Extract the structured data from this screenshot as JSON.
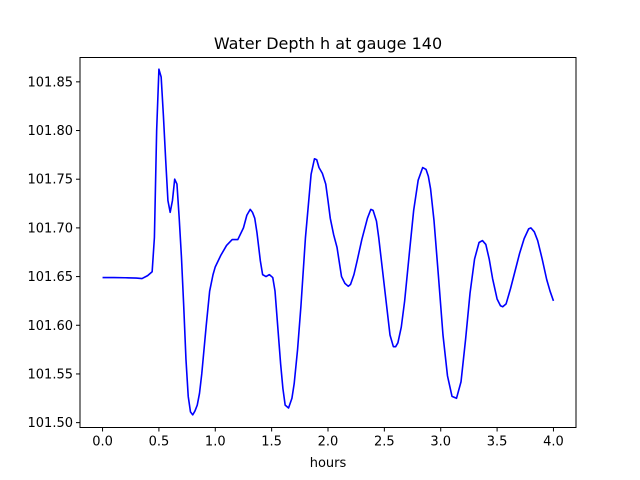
{
  "chart_data": {
    "type": "line",
    "title": "Water Depth h at gauge 140",
    "xlabel": "hours",
    "ylabel": "",
    "xlim": [
      -0.2,
      4.2
    ],
    "ylim": [
      101.495,
      101.875
    ],
    "xticks": [
      0.0,
      0.5,
      1.0,
      1.5,
      2.0,
      2.5,
      3.0,
      3.5,
      4.0
    ],
    "xtick_labels": [
      "0.0",
      "0.5",
      "1.0",
      "1.5",
      "2.0",
      "2.5",
      "3.0",
      "3.5",
      "4.0"
    ],
    "yticks": [
      101.5,
      101.55,
      101.6,
      101.65,
      101.7,
      101.75,
      101.8,
      101.85
    ],
    "ytick_labels": [
      "101.50",
      "101.55",
      "101.60",
      "101.65",
      "101.70",
      "101.75",
      "101.80",
      "101.85"
    ],
    "grid": false,
    "series": [
      {
        "color": "#0000ff",
        "x": [
          0.0,
          0.1,
          0.2,
          0.3,
          0.35,
          0.4,
          0.44,
          0.46,
          0.48,
          0.5,
          0.52,
          0.54,
          0.56,
          0.58,
          0.6,
          0.62,
          0.64,
          0.66,
          0.68,
          0.7,
          0.72,
          0.74,
          0.76,
          0.78,
          0.8,
          0.82,
          0.84,
          0.86,
          0.88,
          0.9,
          0.92,
          0.95,
          0.98,
          1.0,
          1.05,
          1.1,
          1.15,
          1.2,
          1.25,
          1.28,
          1.31,
          1.33,
          1.35,
          1.37,
          1.4,
          1.42,
          1.45,
          1.48,
          1.51,
          1.53,
          1.55,
          1.58,
          1.6,
          1.62,
          1.65,
          1.68,
          1.7,
          1.73,
          1.76,
          1.8,
          1.85,
          1.88,
          1.9,
          1.92,
          1.95,
          1.98,
          2.0,
          2.02,
          2.05,
          2.08,
          2.1,
          2.12,
          2.15,
          2.18,
          2.2,
          2.23,
          2.26,
          2.3,
          2.35,
          2.38,
          2.4,
          2.43,
          2.45,
          2.48,
          2.52,
          2.55,
          2.58,
          2.6,
          2.62,
          2.65,
          2.68,
          2.72,
          2.76,
          2.8,
          2.84,
          2.87,
          2.89,
          2.91,
          2.94,
          2.98,
          3.02,
          3.06,
          3.1,
          3.14,
          3.18,
          3.22,
          3.26,
          3.3,
          3.34,
          3.37,
          3.4,
          3.43,
          3.46,
          3.5,
          3.53,
          3.55,
          3.58,
          3.62,
          3.66,
          3.7,
          3.74,
          3.78,
          3.8,
          3.83,
          3.86,
          3.9,
          3.94,
          3.97,
          4.0
        ],
        "y": [
          101.649,
          101.649,
          101.6488,
          101.6485,
          101.648,
          101.651,
          101.655,
          101.69,
          101.8,
          101.863,
          101.855,
          101.815,
          101.77,
          101.728,
          101.716,
          101.728,
          101.75,
          101.745,
          101.71,
          101.67,
          101.62,
          101.565,
          101.527,
          101.511,
          101.508,
          101.512,
          101.518,
          101.53,
          101.55,
          101.575,
          101.6,
          101.635,
          101.652,
          101.66,
          101.672,
          101.682,
          101.688,
          101.688,
          101.7,
          101.713,
          101.719,
          101.716,
          101.71,
          101.695,
          101.666,
          101.652,
          101.65,
          101.652,
          101.649,
          101.635,
          101.605,
          101.56,
          101.535,
          101.518,
          101.515,
          101.525,
          101.54,
          101.575,
          101.62,
          101.69,
          101.755,
          101.771,
          101.77,
          101.762,
          101.756,
          101.745,
          101.728,
          101.71,
          101.693,
          101.68,
          101.665,
          101.65,
          101.643,
          101.64,
          101.642,
          101.652,
          101.667,
          101.688,
          101.71,
          101.719,
          101.718,
          101.707,
          101.69,
          101.66,
          101.62,
          101.59,
          101.578,
          101.578,
          101.582,
          101.598,
          101.625,
          101.672,
          101.718,
          101.749,
          101.762,
          101.76,
          101.753,
          101.74,
          101.708,
          101.65,
          101.59,
          101.548,
          101.527,
          101.525,
          101.542,
          101.585,
          101.633,
          101.668,
          101.685,
          101.687,
          101.683,
          101.668,
          101.648,
          101.627,
          101.62,
          101.619,
          101.622,
          101.638,
          101.656,
          101.674,
          101.689,
          101.699,
          101.7,
          101.696,
          101.687,
          101.668,
          101.647,
          101.635,
          101.625
        ]
      }
    ]
  }
}
